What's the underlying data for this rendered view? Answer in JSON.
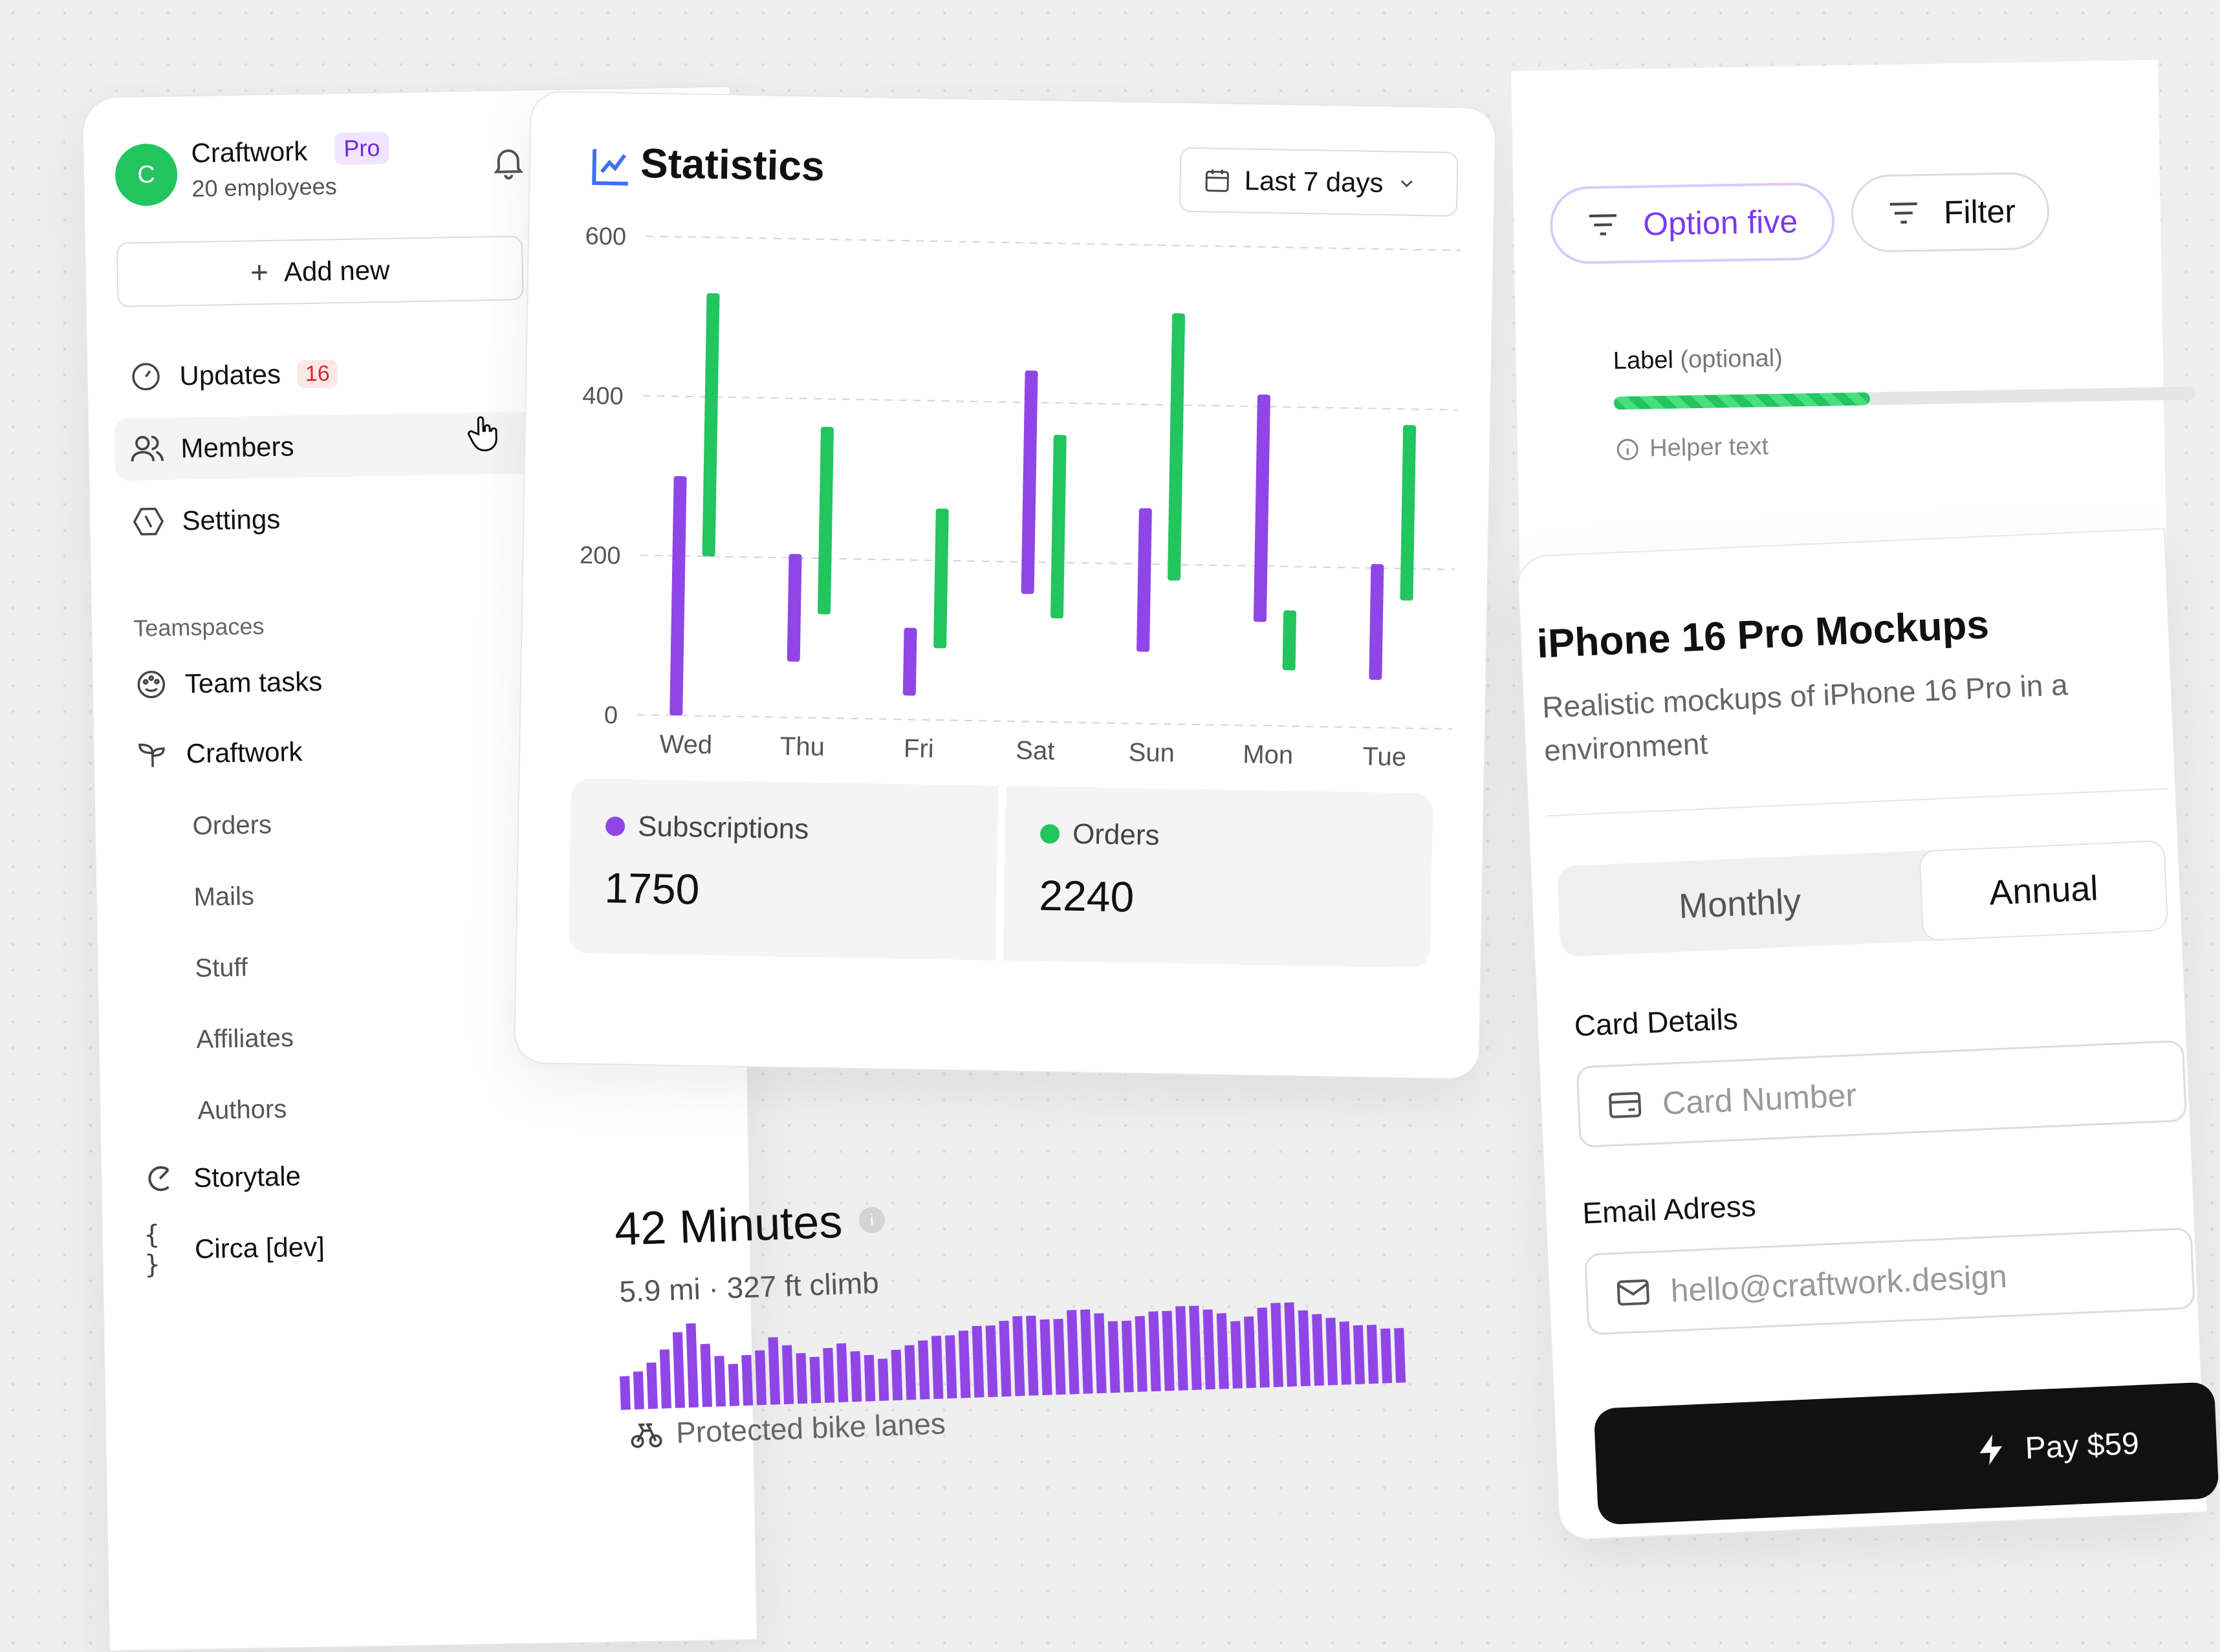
{
  "sidebar": {
    "logo_letter": "C",
    "brand": "Craftwork",
    "plan_badge": "Pro",
    "employees": "20 employees",
    "add_new": "Add new",
    "nav": [
      {
        "label": "Updates",
        "badge": "16",
        "icon": "dashboard-gauge-icon"
      },
      {
        "label": "Members",
        "icon": "users-icon"
      },
      {
        "label": "Settings",
        "icon": "settings-hex-icon"
      }
    ],
    "teamspaces_label": "Teamspaces",
    "team_tasks": "Team tasks",
    "craftwork_space": "Craftwork",
    "sub_items": [
      "Orders",
      "Mails",
      "Stuff",
      "Affiliates",
      "Authors"
    ],
    "storytale": "Storytale",
    "circa": "Circa [dev]",
    "circa_icon_glyph": "{ }"
  },
  "stats": {
    "title": "Statistics",
    "range": "Last 7 days",
    "subscriptions_label": "Subscriptions",
    "subscriptions_value": "1750",
    "orders_label": "Orders",
    "orders_value": "2240",
    "colors": {
      "subscriptions": "#9046e6",
      "orders": "#22c55e"
    }
  },
  "chart_data": {
    "type": "bar",
    "subtype": "floating-range",
    "categories": [
      "Wed",
      "Thu",
      "Fri",
      "Sat",
      "Sun",
      "Mon",
      "Tue"
    ],
    "yticks": [
      0,
      200,
      400,
      600
    ],
    "ylim": [
      0,
      600
    ],
    "grid": true,
    "series": [
      {
        "name": "Subscriptions",
        "color": "#9046e6",
        "ranges": [
          [
            0,
            300
          ],
          [
            70,
            205
          ],
          [
            30,
            115
          ],
          [
            160,
            440
          ],
          [
            90,
            270
          ],
          [
            130,
            415
          ],
          [
            60,
            205
          ]
        ]
      },
      {
        "name": "Orders",
        "color": "#22c55e",
        "ranges": [
          [
            200,
            530
          ],
          [
            130,
            365
          ],
          [
            90,
            265
          ],
          [
            130,
            360
          ],
          [
            180,
            515
          ],
          [
            70,
            145
          ],
          [
            160,
            380
          ]
        ]
      }
    ]
  },
  "activity": {
    "title": "42 Minutes",
    "info_glyph": "i",
    "subtitle": "5.9 mi · 327 ft climb",
    "footer": "Protected bike lanes",
    "bar_levels": [
      0.4,
      0.45,
      0.55,
      0.7,
      0.9,
      1.0,
      0.75,
      0.6,
      0.5,
      0.6,
      0.65,
      0.8,
      0.7,
      0.6,
      0.55,
      0.65,
      0.7,
      0.6,
      0.55,
      0.5,
      0.6,
      0.65,
      0.7,
      0.75,
      0.75,
      0.8,
      0.85,
      0.85,
      0.9,
      0.95,
      0.95,
      0.9,
      0.9,
      1.0,
      1.0,
      0.95,
      0.85,
      0.85,
      0.9,
      0.95,
      0.95,
      1.0,
      1.0,
      0.95,
      0.9,
      0.8,
      0.85,
      0.95,
      1.0,
      1.0,
      0.9,
      0.85,
      0.8,
      0.75,
      0.7,
      0.7,
      0.65,
      0.65
    ],
    "bar_color": "#9046e6"
  },
  "filters": {
    "option_chip": "Option five",
    "filter_chip": "Filter"
  },
  "field": {
    "label": "Label",
    "optional": "(optional)",
    "helper": "Helper text",
    "progress": 0.44
  },
  "product": {
    "title": "iPhone 16 Pro Mockups",
    "description": "Realistic mockups of iPhone 16 Pro in a environment",
    "monthly": "Monthly",
    "annual": "Annual",
    "card_label": "Card Details",
    "card_placeholder": "Card Number",
    "email_label": "Email Adress",
    "email_placeholder": "hello@craftwork.design",
    "pay": "Pay $59"
  }
}
